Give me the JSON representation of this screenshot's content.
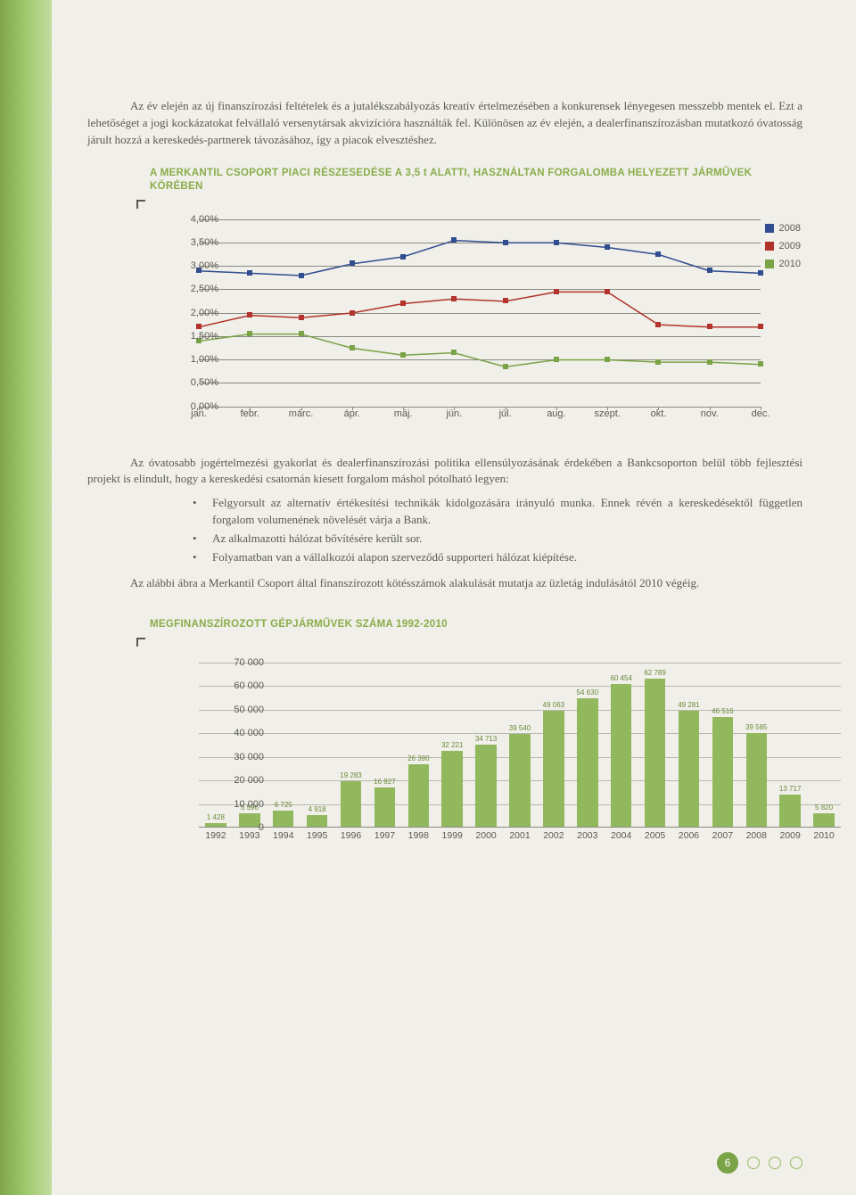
{
  "paragraphs": {
    "p1": "Az év elején az új finanszírozási feltételek és a jutalékszabályozás kreatív értelmezésében a konkurensek lényegesen messzebb mentek el. Ezt a lehetőséget a jogi kockázatokat felvállaló versenytársak akvizícióra használták fel. Különösen az év elején, a dealerfinanszírozásban mutatkozó óvatosság járult hozzá a kereskedés-partnerek távozásához, így a piacok elvesztéshez.",
    "after": "Az óvatosabb jogértelmezési gyakorlat és dealerfinanszírozási politika ellensúlyozásának érdekében a Bankcsoporton belül több fejlesztési projekt is elindult, hogy a kereskedési csatornán kiesett forgalom máshol pótolható legyen:",
    "b1": "Felgyorsult az alternatív értékesítési technikák kidolgozására irányuló munka. Ennek révén a kereskedésektől független forgalom volumenének növelését várja a Bank.",
    "b2": "Az alkalmazotti hálózat bővítésére került sor.",
    "b3": "Folyamatban van a vállalkozói alapon szerveződő supporteri hálózat kiépítése.",
    "p2": "Az alábbi ábra a Merkantil Csoport által finanszírozott kötésszámok alakulását mutatja az üzletág indulásától 2010 végéig."
  },
  "line_chart": {
    "title": "A MERKANTIL CSOPORT PIACI RÉSZESEDÉSE A 3,5 t ALATTI, HASZNÁLTAN FORGALOMBA HELYEZETT JÁRMŰVEK KÖRÉBEN",
    "type": "line",
    "x_labels": [
      "jan.",
      "febr.",
      "márc.",
      "ápr.",
      "máj.",
      "jún.",
      "júl.",
      "aug.",
      "szept.",
      "okt.",
      "nov.",
      "dec."
    ],
    "y_labels": [
      "0,00%",
      "0,50%",
      "1,00%",
      "1,50%",
      "2,00%",
      "2,50%",
      "3,00%",
      "3,50%",
      "4,00%"
    ],
    "ylim": [
      0,
      4.0
    ],
    "ytick_step": 0.5,
    "grid_color": "#8a8a82",
    "background_color": "#f0efe9",
    "series": [
      {
        "name": "2008",
        "color": "#2f4d8f",
        "marker": "square",
        "values": [
          2.9,
          2.85,
          2.8,
          3.05,
          3.2,
          3.55,
          3.5,
          3.5,
          3.4,
          3.25,
          2.9,
          2.85
        ]
      },
      {
        "name": "2009",
        "color": "#b2332b",
        "marker": "square",
        "values": [
          1.7,
          1.95,
          1.9,
          2.0,
          2.2,
          2.3,
          2.25,
          2.45,
          2.45,
          1.75,
          1.7,
          1.7
        ]
      },
      {
        "name": "2010",
        "color": "#7aa347",
        "marker": "square",
        "values": [
          1.4,
          1.55,
          1.55,
          1.25,
          1.1,
          1.15,
          0.85,
          1.0,
          1.0,
          0.95,
          0.95,
          0.9
        ]
      }
    ],
    "legend_labels": [
      "2008",
      "2009",
      "2010"
    ],
    "label_fontsize": 11,
    "line_width": 1.5,
    "marker_size": 6
  },
  "bar_chart": {
    "title": "MEGFINANSZÍROZOTT GÉPJÁRMŰVEK SZÁMA 1992-2010",
    "type": "bar",
    "categories": [
      "1992",
      "1993",
      "1994",
      "1995",
      "1996",
      "1997",
      "1998",
      "1999",
      "2000",
      "2001",
      "2002",
      "2003",
      "2004",
      "2005",
      "2006",
      "2007",
      "2008",
      "2009",
      "2010"
    ],
    "values": [
      1428,
      5596,
      6725,
      4918,
      19283,
      16827,
      26390,
      32221,
      34713,
      39540,
      49063,
      54630,
      60454,
      62789,
      49281,
      46516,
      39585,
      13717,
      5820
    ],
    "value_labels": [
      "1 428",
      "5 596",
      "6 725",
      "4 918",
      "19 283",
      "16 827",
      "26 390",
      "32 221",
      "34 713",
      "39 540",
      "49 063",
      "54 630",
      "60 454",
      "62 789",
      "49 281",
      "46 516",
      "39 585",
      "13 717",
      "5 820"
    ],
    "ylim": [
      0,
      70000
    ],
    "ytick_step": 10000,
    "y_labels": [
      "0",
      "10 000",
      "20 000",
      "30 000",
      "40 000",
      "50 000",
      "60 000",
      "70 000"
    ],
    "bar_color": "#92b85d",
    "bar_width": 0.62,
    "grid_color": "#b8b8b0",
    "background_color": "#f0efe9",
    "label_fontsize": 11
  },
  "page_number": "6",
  "colors": {
    "accent_green": "#8aad4a",
    "text": "#5a5a52"
  }
}
